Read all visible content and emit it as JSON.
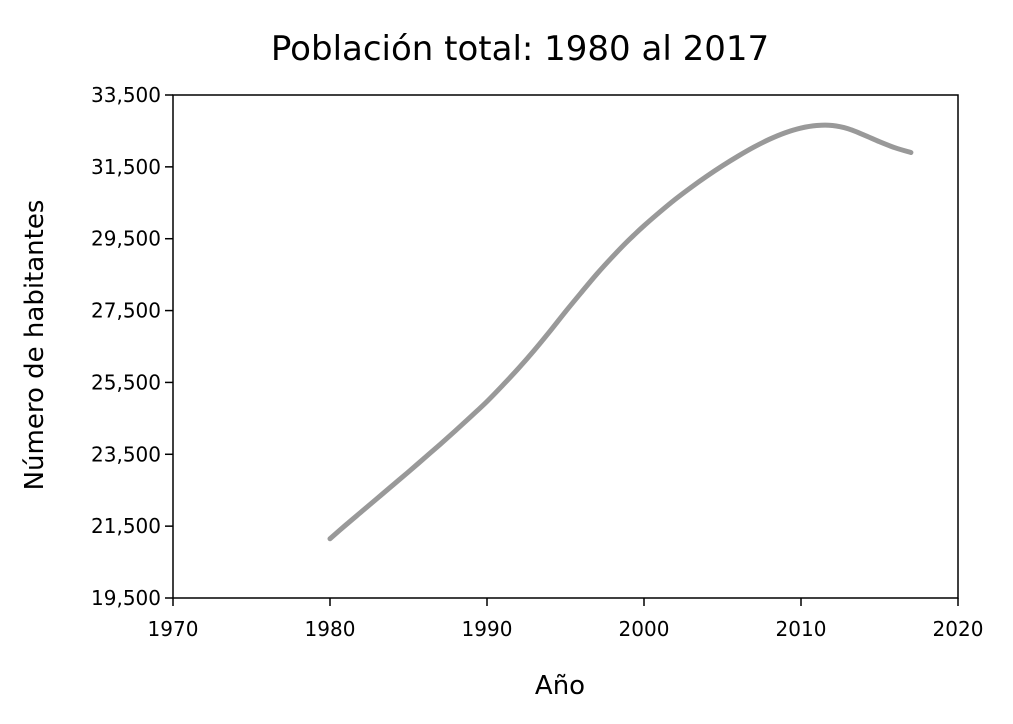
{
  "chart_data": {
    "type": "line",
    "title": "Población total: 1980 al 2017",
    "xlabel": "Año",
    "ylabel": "Número de habitantes",
    "xlim": [
      1970,
      2020
    ],
    "ylim": [
      19500,
      33500
    ],
    "x_ticks": [
      1970,
      1980,
      1990,
      2000,
      2010,
      2020
    ],
    "y_ticks": [
      19500,
      21500,
      23500,
      25500,
      27500,
      29500,
      31500,
      33500
    ],
    "y_tick_labels": [
      "19,500",
      "21,500",
      "23,500",
      "25,500",
      "27,500",
      "29,500",
      "31,500",
      "33,500"
    ],
    "grid": false,
    "legend": "none",
    "series": [
      {
        "color": "#999999",
        "x": [
          1980,
          1981,
          1982,
          1983,
          1984,
          1985,
          1986,
          1987,
          1988,
          1989,
          1990,
          1991,
          1992,
          1993,
          1994,
          1995,
          1996,
          1997,
          1998,
          1999,
          2000,
          2001,
          2002,
          2003,
          2004,
          2005,
          2006,
          2007,
          2008,
          2009,
          2010,
          2011,
          2012,
          2013,
          2014,
          2015,
          2016,
          2017
        ],
        "values": [
          21150,
          21530,
          21900,
          22270,
          22640,
          23010,
          23390,
          23770,
          24160,
          24560,
          24970,
          25420,
          25890,
          26390,
          26920,
          27470,
          28000,
          28520,
          29000,
          29450,
          29860,
          30240,
          30600,
          30930,
          31240,
          31530,
          31800,
          32050,
          32270,
          32450,
          32580,
          32650,
          32650,
          32560,
          32390,
          32200,
          32030,
          31900
        ]
      }
    ]
  }
}
